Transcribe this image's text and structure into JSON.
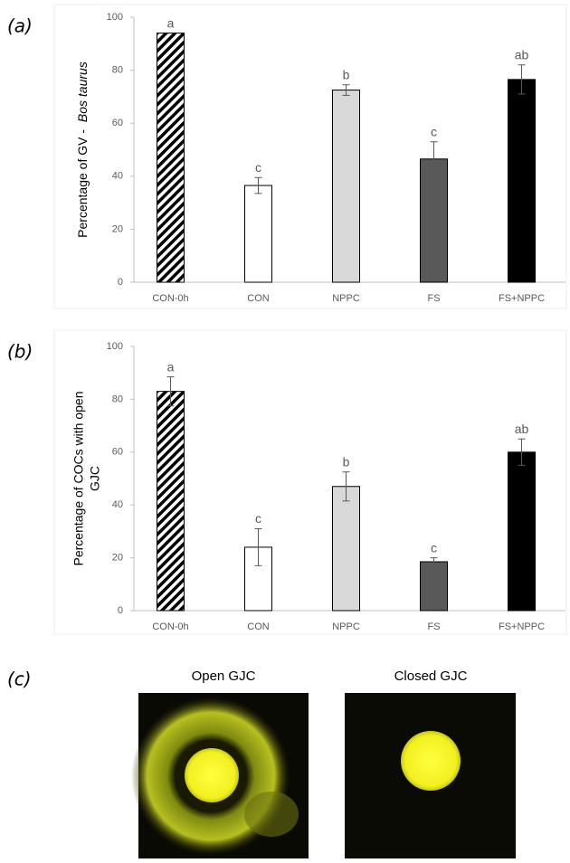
{
  "chart_data": [
    {
      "type": "bar",
      "panel_label": "(a)",
      "y_label": [
        "Percentage of GV - ",
        "Bos taurus"
      ],
      "categories": [
        "CON-0h",
        "CON",
        "NPPC",
        "FS",
        "FS+NPPC"
      ],
      "values": [
        94,
        36.5,
        72.5,
        46.5,
        76.5
      ],
      "errors": [
        null,
        3,
        2,
        6.5,
        5.5
      ],
      "annotations": [
        "a",
        "c",
        "b",
        "c",
        "ab"
      ],
      "fills": [
        "hatch",
        "#ffffff",
        "#d9d9d9",
        "#595959",
        "#000000"
      ],
      "ylim": [
        0,
        100
      ],
      "yticks": [
        0,
        20,
        40,
        60,
        80,
        100
      ]
    },
    {
      "type": "bar",
      "panel_label": "(b)",
      "y_label": [
        "Percentage of COCs with open",
        "GJC"
      ],
      "categories": [
        "CON-0h",
        "CON",
        "NPPC",
        "FS",
        "FS+NPPC"
      ],
      "values": [
        83,
        24,
        47,
        18.5,
        60
      ],
      "errors": [
        5.5,
        7,
        5.5,
        1.5,
        5
      ],
      "annotations": [
        "a",
        "c",
        "b",
        "c",
        "ab"
      ],
      "fills": [
        "hatch",
        "#ffffff",
        "#d9d9d9",
        "#595959",
        "#000000"
      ],
      "ylim": [
        0,
        100
      ],
      "yticks": [
        0,
        20,
        40,
        60,
        80,
        100
      ]
    }
  ],
  "images": {
    "panel_label": "(c)",
    "captions": [
      "Open GJC",
      "Closed GJC"
    ]
  }
}
